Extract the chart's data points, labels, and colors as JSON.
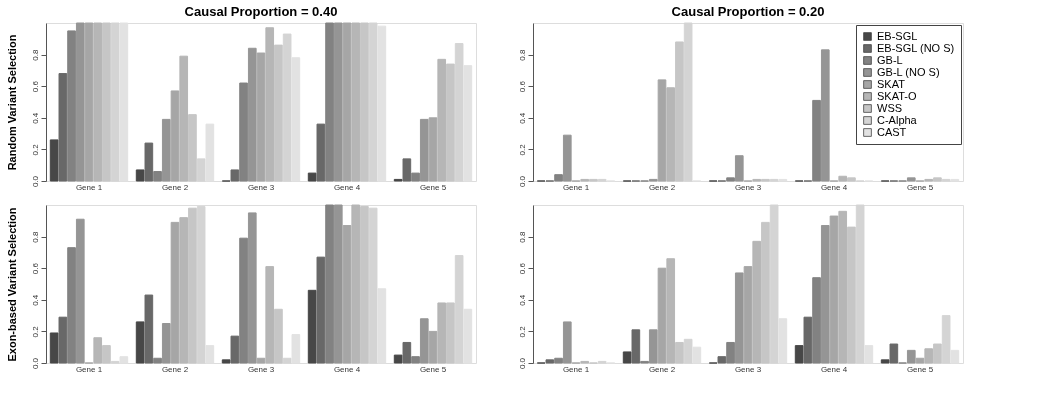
{
  "chart_data": [
    {
      "type": "bar",
      "title": "Causal Proportion = 0.40",
      "ylabel": "Random Variant Selection",
      "categories": [
        "Gene 1",
        "Gene 2",
        "Gene 3",
        "Gene 4",
        "Gene 5"
      ],
      "ylim": [
        0,
        1
      ],
      "yticks": [
        {
          "value": 0,
          "label": "0.0"
        },
        {
          "value": 0.2,
          "label": "0.2"
        },
        {
          "value": 0.4,
          "label": "0.4"
        },
        {
          "value": 0.6,
          "label": "0.6"
        },
        {
          "value": 0.8,
          "label": "0.8"
        }
      ],
      "series": [
        {
          "color": "#474747",
          "values": [
            0.26,
            0.07,
            0.0,
            0.05,
            0.01
          ]
        },
        {
          "color": "#686868",
          "values": [
            0.68,
            0.24,
            0.07,
            0.36,
            0.14
          ]
        },
        {
          "color": "#828282",
          "values": [
            0.95,
            0.06,
            0.62,
            1.0,
            0.05
          ]
        },
        {
          "color": "#959595",
          "values": [
            1.0,
            0.39,
            0.84,
            1.0,
            0.39
          ]
        },
        {
          "color": "#a6a6a6",
          "values": [
            1.0,
            0.57,
            0.81,
            1.0,
            0.4
          ]
        },
        {
          "color": "#b6b6b6",
          "values": [
            1.0,
            0.79,
            0.97,
            1.0,
            0.77
          ]
        },
        {
          "color": "#c6c6c6",
          "values": [
            1.0,
            0.42,
            0.86,
            1.0,
            0.74
          ]
        },
        {
          "color": "#d4d4d4",
          "values": [
            1.0,
            0.14,
            0.93,
            1.0,
            0.87
          ]
        },
        {
          "color": "#e2e2e2",
          "values": [
            1.0,
            0.36,
            0.78,
            0.98,
            0.73
          ]
        }
      ]
    },
    {
      "type": "bar",
      "title": "Causal Proportion = 0.20",
      "categories": [
        "Gene 1",
        "Gene 2",
        "Gene 3",
        "Gene 4",
        "Gene 5"
      ],
      "ylim": [
        0,
        1
      ],
      "yticks": [
        {
          "value": 0,
          "label": "0.0"
        },
        {
          "value": 0.2,
          "label": "0.2"
        },
        {
          "value": 0.4,
          "label": "0.4"
        },
        {
          "value": 0.6,
          "label": "0.6"
        },
        {
          "value": 0.8,
          "label": "0.8"
        }
      ],
      "legend": "top right",
      "series": [
        {
          "name": "EB-SGL",
          "color": "#474747",
          "values": [
            0.0,
            0.0,
            0.0,
            0.0,
            0.0
          ]
        },
        {
          "name": "EB-SGL (NO S)",
          "color": "#686868",
          "values": [
            0.0,
            0.0,
            0.0,
            0.0,
            0.0
          ]
        },
        {
          "name": "GB-L",
          "color": "#828282",
          "values": [
            0.04,
            0.0,
            0.02,
            0.51,
            0.0
          ]
        },
        {
          "name": "GB-L (NO S)",
          "color": "#959595",
          "values": [
            0.29,
            0.01,
            0.16,
            0.83,
            0.02
          ]
        },
        {
          "name": "SKAT",
          "color": "#a6a6a6",
          "values": [
            0.0,
            0.64,
            0.0,
            0.0,
            0.0
          ]
        },
        {
          "name": "SKAT-O",
          "color": "#b6b6b6",
          "values": [
            0.01,
            0.59,
            0.01,
            0.03,
            0.01
          ]
        },
        {
          "name": "WSS",
          "color": "#c6c6c6",
          "values": [
            0.01,
            0.88,
            0.01,
            0.02,
            0.02
          ]
        },
        {
          "name": "C-Alpha",
          "color": "#d4d4d4",
          "values": [
            0.01,
            1.0,
            0.01,
            0.0,
            0.01
          ]
        },
        {
          "name": "CAST",
          "color": "#e2e2e2",
          "values": [
            0.0,
            0.0,
            0.01,
            0.0,
            0.01
          ]
        }
      ]
    },
    {
      "type": "bar",
      "ylabel": "Exon-based Variant Selection",
      "categories": [
        "Gene 1",
        "Gene 2",
        "Gene 3",
        "Gene 4",
        "Gene 5"
      ],
      "ylim": [
        0,
        1
      ],
      "yticks": [
        {
          "value": 0,
          "label": "0.0"
        },
        {
          "value": 0.2,
          "label": "0.2"
        },
        {
          "value": 0.4,
          "label": "0.4"
        },
        {
          "value": 0.6,
          "label": "0.6"
        },
        {
          "value": 0.8,
          "label": "0.8"
        }
      ],
      "series": [
        {
          "color": "#474747",
          "values": [
            0.19,
            0.26,
            0.02,
            0.46,
            0.05
          ]
        },
        {
          "color": "#686868",
          "values": [
            0.29,
            0.43,
            0.17,
            0.67,
            0.13
          ]
        },
        {
          "color": "#828282",
          "values": [
            0.73,
            0.03,
            0.79,
            1.0,
            0.04
          ]
        },
        {
          "color": "#959595",
          "values": [
            0.91,
            0.25,
            0.95,
            1.0,
            0.28
          ]
        },
        {
          "color": "#a6a6a6",
          "values": [
            0.0,
            0.89,
            0.03,
            0.87,
            0.2
          ]
        },
        {
          "color": "#b6b6b6",
          "values": [
            0.16,
            0.92,
            0.61,
            1.0,
            0.38
          ]
        },
        {
          "color": "#c6c6c6",
          "values": [
            0.11,
            0.98,
            0.34,
            0.99,
            0.38
          ]
        },
        {
          "color": "#d4d4d4",
          "values": [
            0.01,
            0.99,
            0.03,
            0.98,
            0.68
          ]
        },
        {
          "color": "#e2e2e2",
          "values": [
            0.04,
            0.11,
            0.18,
            0.47,
            0.34
          ]
        }
      ]
    },
    {
      "type": "bar",
      "categories": [
        "Gene 1",
        "Gene 2",
        "Gene 3",
        "Gene 4",
        "Gene 5"
      ],
      "ylim": [
        0,
        1
      ],
      "yticks": [
        {
          "value": 0,
          "label": "0.0"
        },
        {
          "value": 0.2,
          "label": "0.2"
        },
        {
          "value": 0.4,
          "label": "0.4"
        },
        {
          "value": 0.6,
          "label": "0.6"
        },
        {
          "value": 0.8,
          "label": "0.8"
        }
      ],
      "series": [
        {
          "color": "#474747",
          "values": [
            0.0,
            0.07,
            0.0,
            0.11,
            0.02
          ]
        },
        {
          "color": "#686868",
          "values": [
            0.02,
            0.21,
            0.04,
            0.29,
            0.12
          ]
        },
        {
          "color": "#828282",
          "values": [
            0.03,
            0.01,
            0.13,
            0.54,
            0.0
          ]
        },
        {
          "color": "#959595",
          "values": [
            0.26,
            0.21,
            0.57,
            0.87,
            0.08
          ]
        },
        {
          "color": "#a6a6a6",
          "values": [
            0.0,
            0.6,
            0.61,
            0.93,
            0.03
          ]
        },
        {
          "color": "#b6b6b6",
          "values": [
            0.01,
            0.66,
            0.77,
            0.96,
            0.09
          ]
        },
        {
          "color": "#c6c6c6",
          "values": [
            0.0,
            0.13,
            0.89,
            0.86,
            0.12
          ]
        },
        {
          "color": "#d4d4d4",
          "values": [
            0.01,
            0.15,
            1.0,
            1.0,
            0.3
          ]
        },
        {
          "color": "#e2e2e2",
          "values": [
            0.0,
            0.1,
            0.28,
            0.11,
            0.08
          ]
        }
      ]
    }
  ]
}
